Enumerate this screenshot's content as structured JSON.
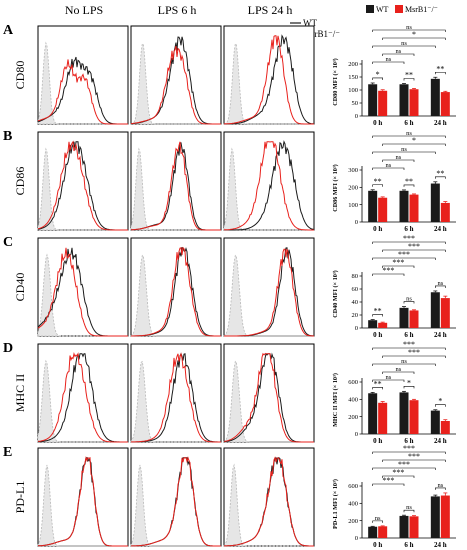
{
  "columns": [
    "No LPS",
    "LPS 6 h",
    "LPS 24 h"
  ],
  "legend_top": {
    "wt": "WT",
    "ko": "MsrB1⁻/⁻"
  },
  "legend_bar": {
    "wt": "WT",
    "ko": "MsrB1⁻/⁻"
  },
  "colors": {
    "wt": "#1a1a1a",
    "ko": "#e8211c",
    "isotype": "#b8b8b8",
    "isotype_fill": "#e6e6e6",
    "frame": "#000000"
  },
  "histogram_shapes": {
    "rows": [
      [
        {
          "wt": {
            "c": 0.4,
            "w": 0.09,
            "shoulder": 0.58,
            "tail": 0.15
          },
          "ko": {
            "c": 0.33,
            "w": 0.08,
            "shoulder": 0.52,
            "tail": 0.1
          }
        },
        {
          "wt": {
            "c": 0.5,
            "w": 0.09,
            "shoulder": 0.6,
            "tail": 0.1
          },
          "ko": {
            "c": 0.46,
            "w": 0.08,
            "shoulder": 0.58,
            "tail": 0.08
          }
        },
        {
          "wt": {
            "c": 0.62,
            "w": 0.09,
            "shoulder": 0.72,
            "tail": 0.15
          },
          "ko": {
            "c": 0.54,
            "w": 0.08,
            "shoulder": 0.62,
            "tail": 0.1
          }
        }
      ],
      [
        {
          "wt": {
            "c": 0.48,
            "w": 0.1,
            "shoulder": 0.36,
            "tail": 0.2
          },
          "ko": {
            "c": 0.44,
            "w": 0.1,
            "shoulder": 0.32,
            "tail": 0.15
          }
        },
        {
          "wt": {
            "c": 0.52,
            "w": 0.07,
            "shoulder": 0.6,
            "tail": 0.1
          },
          "ko": {
            "c": 0.5,
            "w": 0.07,
            "shoulder": 0.58,
            "tail": 0.08
          }
        },
        {
          "wt": {
            "c": 0.72,
            "w": 0.09,
            "shoulder": 0.6,
            "tail": 0.25
          },
          "ko": {
            "c": 0.55,
            "w": 0.1,
            "shoulder": 0.48,
            "tail": 0.15
          }
        }
      ],
      [
        {
          "wt": {
            "c": 0.32,
            "w": 0.1,
            "shoulder": 0.44,
            "tail": 0.25
          },
          "ko": {
            "c": 0.27,
            "w": 0.09,
            "shoulder": 0.38,
            "tail": 0.15
          }
        },
        {
          "wt": {
            "c": 0.62,
            "w": 0.08,
            "shoulder": 0.54,
            "tail": 0.1
          },
          "ko": {
            "c": 0.6,
            "w": 0.08,
            "shoulder": 0.52,
            "tail": 0.1
          }
        },
        {
          "wt": {
            "c": 0.74,
            "w": 0.07,
            "shoulder": 0.66,
            "tail": 0.1
          },
          "ko": {
            "c": 0.72,
            "w": 0.07,
            "shoulder": 0.64,
            "tail": 0.1
          }
        }
      ],
      [
        {
          "wt": {
            "c": 0.53,
            "w": 0.1,
            "shoulder": 0.44,
            "tail": 0.15
          },
          "ko": {
            "c": 0.46,
            "w": 0.1,
            "shoulder": 0.36,
            "tail": 0.1
          }
        },
        {
          "wt": {
            "c": 0.62,
            "w": 0.09,
            "shoulder": 0.52,
            "tail": 0.1
          },
          "ko": {
            "c": 0.58,
            "w": 0.09,
            "shoulder": 0.48,
            "tail": 0.1
          }
        },
        {
          "wt": {
            "c": 0.55,
            "w": 0.08,
            "shoulder": 0.46,
            "tail": 0.35
          },
          "ko": {
            "c": 0.52,
            "w": 0.08,
            "shoulder": 0.44,
            "tail": 0.35
          }
        }
      ],
      [
        {
          "wt": {
            "c": 0.52,
            "w": 0.07,
            "shoulder": 0.58,
            "tail": 0.1
          },
          "ko": {
            "c": 0.52,
            "w": 0.07,
            "shoulder": 0.58,
            "tail": 0.1
          }
        },
        {
          "wt": {
            "c": 0.58,
            "w": 0.08,
            "shoulder": 0.64,
            "tail": 0.1
          },
          "ko": {
            "c": 0.58,
            "w": 0.08,
            "shoulder": 0.64,
            "tail": 0.1
          }
        },
        {
          "wt": {
            "c": 0.56,
            "w": 0.09,
            "shoulder": 0.64,
            "tail": 0.1
          },
          "ko": {
            "c": 0.56,
            "w": 0.09,
            "shoulder": 0.64,
            "tail": 0.1
          }
        }
      ]
    ],
    "isotype": [
      [
        {
          "c": 0.09,
          "w": 0.035
        },
        {
          "c": 0.13,
          "w": 0.035
        },
        {
          "c": 0.13,
          "w": 0.035
        }
      ],
      [
        {
          "c": 0.09,
          "w": 0.035
        },
        {
          "c": 0.09,
          "w": 0.035
        },
        {
          "c": 0.09,
          "w": 0.035
        }
      ],
      [
        {
          "c": 0.1,
          "w": 0.04
        },
        {
          "c": 0.13,
          "w": 0.04
        },
        {
          "c": 0.13,
          "w": 0.04
        }
      ],
      [
        {
          "c": 0.09,
          "w": 0.04
        },
        {
          "c": 0.12,
          "w": 0.04
        },
        {
          "c": 0.13,
          "w": 0.04
        }
      ],
      [
        {
          "c": 0.1,
          "w": 0.035
        },
        {
          "c": 0.1,
          "w": 0.035
        },
        {
          "c": 0.11,
          "w": 0.035
        }
      ]
    ]
  },
  "chart_data": [
    {
      "type": "bar",
      "panel": "A",
      "marker": "CD80",
      "ylabel": "CD80 MFI (× 10³)",
      "categories": [
        "0 h",
        "6 h",
        "24 h"
      ],
      "ylim": [
        0,
        200
      ],
      "yticks": [
        0,
        50,
        100,
        150,
        200
      ],
      "series": [
        {
          "name": "WT",
          "values": [
            122,
            122,
            143
          ],
          "errors": [
            5,
            3,
            6
          ]
        },
        {
          "name": "MsrB1⁻/⁻",
          "values": [
            97,
            103,
            92
          ],
          "errors": [
            4,
            3,
            3
          ]
        }
      ],
      "annotations": [
        {
          "text": "*",
          "from": [
            0,
            0
          ],
          "to": [
            0,
            1
          ]
        },
        {
          "text": "**",
          "from": [
            1,
            0
          ],
          "to": [
            1,
            1
          ]
        },
        {
          "text": "**",
          "from": [
            2,
            0
          ],
          "to": [
            2,
            1
          ]
        },
        {
          "text": "ns",
          "from": [
            0,
            0
          ],
          "to": [
            1,
            0
          ]
        },
        {
          "text": "ns",
          "from": [
            0,
            1
          ],
          "to": [
            1,
            1
          ]
        },
        {
          "text": "ns",
          "from": [
            0,
            0
          ],
          "to": [
            2,
            0
          ]
        },
        {
          "text": "*",
          "from": [
            0,
            1
          ],
          "to": [
            2,
            1
          ]
        },
        {
          "text": "ns",
          "from": [
            0,
            0
          ],
          "to": [
            2,
            1
          ]
        }
      ]
    },
    {
      "type": "bar",
      "panel": "B",
      "marker": "CD86",
      "ylabel": "CD86 MFI (× 10³)",
      "categories": [
        "0 h",
        "6 h",
        "24 h"
      ],
      "ylim": [
        0,
        300
      ],
      "yticks": [
        0,
        100,
        200,
        300
      ],
      "series": [
        {
          "name": "WT",
          "values": [
            180,
            180,
            222
          ],
          "errors": [
            6,
            5,
            10
          ]
        },
        {
          "name": "MsrB1⁻/⁻",
          "values": [
            140,
            158,
            110
          ],
          "errors": [
            5,
            4,
            8
          ]
        }
      ],
      "annotations": [
        {
          "text": "**",
          "from": [
            0,
            0
          ],
          "to": [
            0,
            1
          ]
        },
        {
          "text": "**",
          "from": [
            1,
            0
          ],
          "to": [
            1,
            1
          ]
        },
        {
          "text": "**",
          "from": [
            2,
            0
          ],
          "to": [
            2,
            1
          ]
        },
        {
          "text": "ns",
          "from": [
            0,
            0
          ],
          "to": [
            1,
            0
          ]
        },
        {
          "text": "ns",
          "from": [
            0,
            1
          ],
          "to": [
            1,
            1
          ]
        },
        {
          "text": "ns",
          "from": [
            0,
            0
          ],
          "to": [
            2,
            0
          ]
        },
        {
          "text": "*",
          "from": [
            0,
            1
          ],
          "to": [
            2,
            1
          ]
        },
        {
          "text": "ns",
          "from": [
            0,
            0
          ],
          "to": [
            2,
            1
          ]
        }
      ]
    },
    {
      "type": "bar",
      "panel": "C",
      "marker": "CD40",
      "ylabel": "CD40 MFI (× 10³)",
      "categories": [
        "0 h",
        "6 h",
        "24 h"
      ],
      "ylim": [
        0,
        80
      ],
      "yticks": [
        0,
        20,
        40,
        60,
        80
      ],
      "series": [
        {
          "name": "WT",
          "values": [
            12,
            31,
            55
          ],
          "errors": [
            1,
            2,
            2
          ]
        },
        {
          "name": "MsrB1⁻/⁻",
          "values": [
            8,
            27,
            46
          ],
          "errors": [
            1,
            1,
            3
          ]
        }
      ],
      "annotations": [
        {
          "text": "**",
          "from": [
            0,
            0
          ],
          "to": [
            0,
            1
          ]
        },
        {
          "text": "ns",
          "from": [
            1,
            0
          ],
          "to": [
            1,
            1
          ]
        },
        {
          "text": "ns",
          "from": [
            2,
            0
          ],
          "to": [
            2,
            1
          ]
        },
        {
          "text": "***",
          "from": [
            0,
            0
          ],
          "to": [
            1,
            0
          ]
        },
        {
          "text": "***",
          "from": [
            0,
            1
          ],
          "to": [
            1,
            1
          ]
        },
        {
          "text": "***",
          "from": [
            0,
            0
          ],
          "to": [
            2,
            0
          ]
        },
        {
          "text": "***",
          "from": [
            0,
            1
          ],
          "to": [
            2,
            1
          ]
        },
        {
          "text": "***",
          "from": [
            0,
            0
          ],
          "to": [
            2,
            1
          ]
        }
      ]
    },
    {
      "type": "bar",
      "panel": "D",
      "marker": "MHC II",
      "ylabel": "MHC II MFI (× 10³)",
      "categories": [
        "0 h",
        "6 h",
        "24 h"
      ],
      "ylim": [
        0,
        600
      ],
      "yticks": [
        0,
        200,
        400,
        600
      ],
      "series": [
        {
          "name": "WT",
          "values": [
            470,
            480,
            270
          ],
          "errors": [
            10,
            12,
            10
          ]
        },
        {
          "name": "MsrB1⁻/⁻",
          "values": [
            360,
            390,
            150
          ],
          "errors": [
            15,
            10,
            15
          ]
        }
      ],
      "annotations": [
        {
          "text": "**",
          "from": [
            0,
            0
          ],
          "to": [
            0,
            1
          ]
        },
        {
          "text": "*",
          "from": [
            1,
            0
          ],
          "to": [
            1,
            1
          ]
        },
        {
          "text": "*",
          "from": [
            2,
            0
          ],
          "to": [
            2,
            1
          ]
        },
        {
          "text": "ns",
          "from": [
            0,
            0
          ],
          "to": [
            1,
            0
          ]
        },
        {
          "text": "ns",
          "from": [
            0,
            1
          ],
          "to": [
            1,
            1
          ]
        },
        {
          "text": "ns",
          "from": [
            0,
            0
          ],
          "to": [
            2,
            0
          ]
        },
        {
          "text": "***",
          "from": [
            0,
            1
          ],
          "to": [
            2,
            1
          ]
        },
        {
          "text": "***",
          "from": [
            0,
            0
          ],
          "to": [
            2,
            1
          ]
        }
      ]
    },
    {
      "type": "bar",
      "panel": "E",
      "marker": "PD-L1",
      "ylabel": "PD-L1 MFI (× 10³)",
      "categories": [
        "0 h",
        "6 h",
        "24 h"
      ],
      "ylim": [
        0,
        600
      ],
      "yticks": [
        0,
        200,
        400,
        600
      ],
      "series": [
        {
          "name": "WT",
          "values": [
            130,
            255,
            480
          ],
          "errors": [
            5,
            8,
            15
          ]
        },
        {
          "name": "MsrB1⁻/⁻",
          "values": [
            135,
            250,
            490
          ],
          "errors": [
            5,
            8,
            30
          ]
        }
      ],
      "annotations": [
        {
          "text": "ns",
          "from": [
            0,
            0
          ],
          "to": [
            0,
            1
          ]
        },
        {
          "text": "ns",
          "from": [
            1,
            0
          ],
          "to": [
            1,
            1
          ]
        },
        {
          "text": "ns",
          "from": [
            2,
            0
          ],
          "to": [
            2,
            1
          ]
        },
        {
          "text": "***",
          "from": [
            0,
            0
          ],
          "to": [
            1,
            0
          ]
        },
        {
          "text": "***",
          "from": [
            0,
            1
          ],
          "to": [
            1,
            1
          ]
        },
        {
          "text": "***",
          "from": [
            0,
            0
          ],
          "to": [
            2,
            0
          ]
        },
        {
          "text": "***",
          "from": [
            0,
            1
          ],
          "to": [
            2,
            1
          ]
        },
        {
          "text": "***",
          "from": [
            0,
            0
          ],
          "to": [
            2,
            1
          ]
        }
      ]
    }
  ]
}
